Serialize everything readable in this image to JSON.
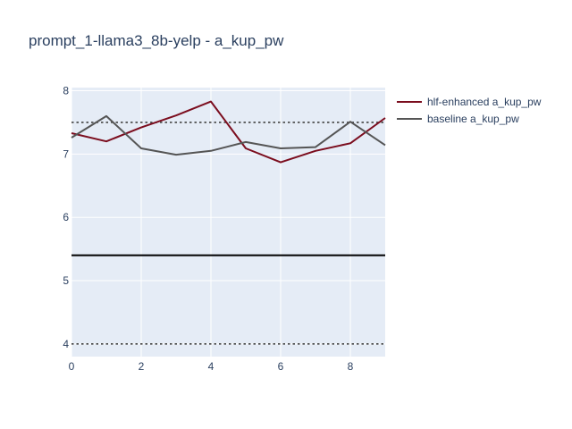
{
  "chart_data": {
    "type": "line",
    "title": "prompt_1-llama3_8b-yelp - a_kup_pw",
    "xlabel": "",
    "ylabel": "",
    "xlim": [
      0,
      9
    ],
    "ylim": [
      3.8,
      8.05
    ],
    "x_ticks": [
      "0",
      "2",
      "4",
      "6",
      "8"
    ],
    "y_ticks": [
      "4",
      "5",
      "6",
      "7",
      "8"
    ],
    "grid": true,
    "legend_position": "top-right",
    "x": [
      0,
      1,
      2,
      3,
      4,
      5,
      6,
      7,
      8,
      9
    ],
    "series": [
      {
        "name": "hlf-enhanced a_kup_pw",
        "color": "#7b0d1e",
        "values": [
          7.33,
          7.2,
          7.42,
          7.61,
          7.83,
          7.09,
          6.87,
          7.05,
          7.17,
          7.57
        ]
      },
      {
        "name": "baseline a_kup_pw",
        "color": "#555555",
        "values": [
          7.26,
          7.6,
          7.09,
          6.99,
          7.05,
          7.19,
          7.09,
          7.11,
          7.51,
          7.14
        ]
      }
    ],
    "reference_lines": [
      {
        "y": 7.5,
        "style": "dotted",
        "color": "#444444"
      },
      {
        "y": 5.4,
        "style": "solid",
        "color": "#000000"
      },
      {
        "y": 4.0,
        "style": "dotted",
        "color": "#444444"
      }
    ],
    "plot_bg": "#e5ecf6",
    "grid_color": "#ffffff",
    "text_color": "#2a3f5f"
  }
}
